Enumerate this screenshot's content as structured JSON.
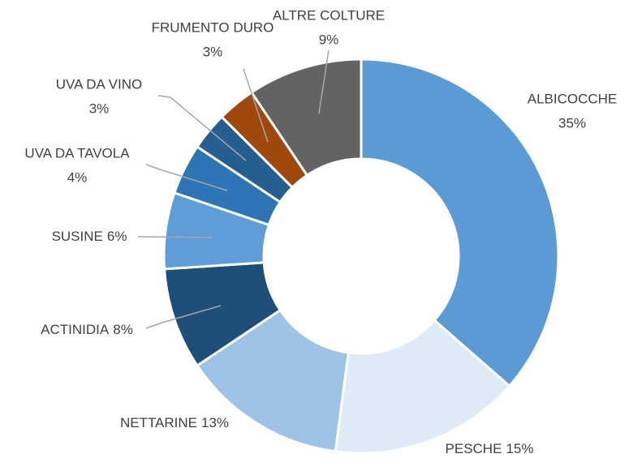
{
  "chart_data": {
    "type": "donut",
    "categories": [
      "ALBICOCCHE",
      "PESCHE",
      "NETTARINE",
      "ACTINIDIA",
      "SUSINE",
      "UVA DA TAVOLA",
      "UVA DA VINO",
      "FRUMENTO DURO",
      "ALTRE COLTURE"
    ],
    "values": [
      35,
      15,
      13,
      8,
      6,
      4,
      3,
      3,
      9
    ],
    "value_labels": [
      "35%",
      "15%",
      "13%",
      "8%",
      "6%",
      "4%",
      "3%",
      "3%",
      "9%"
    ],
    "colors": [
      "#5b9bd5",
      "#deebf7",
      "#9dc3e6",
      "#1f4e79",
      "#5e9ed8",
      "#2e75b6",
      "#255e91",
      "#9e480e",
      "#636363"
    ]
  }
}
